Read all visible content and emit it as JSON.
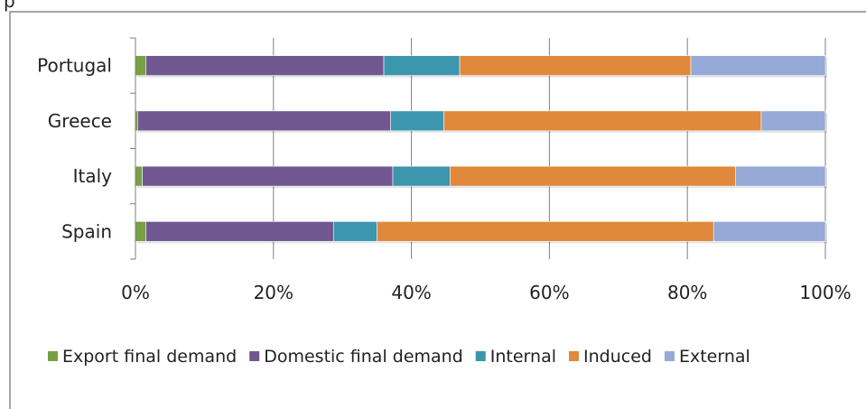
{
  "top_label": "p",
  "chart_data": {
    "type": "bar",
    "orientation": "horizontal",
    "stacked": "percent",
    "categories": [
      "Portugal",
      "Greece",
      "Italy",
      "Spain"
    ],
    "series": [
      {
        "name": "Export final demand",
        "color": "#77a043",
        "values": [
          1.5,
          0.3,
          1.0,
          1.5
        ]
      },
      {
        "name": "Domestic final demand",
        "color": "#71578f",
        "values": [
          34.5,
          36.7,
          36.3,
          27.2
        ]
      },
      {
        "name": "Internal",
        "color": "#3c96ae",
        "values": [
          11.0,
          7.7,
          8.3,
          6.3
        ]
      },
      {
        "name": "Induced",
        "color": "#e0883c",
        "values": [
          33.5,
          46.0,
          41.4,
          48.8
        ]
      },
      {
        "name": "External",
        "color": "#94a9d6",
        "values": [
          19.5,
          9.3,
          13.0,
          16.2
        ]
      }
    ],
    "xlim": [
      0,
      100
    ],
    "x_ticks": [
      "0%",
      "20%",
      "40%",
      "60%",
      "80%",
      "100%"
    ],
    "grid": true,
    "legend": "bottom"
  }
}
